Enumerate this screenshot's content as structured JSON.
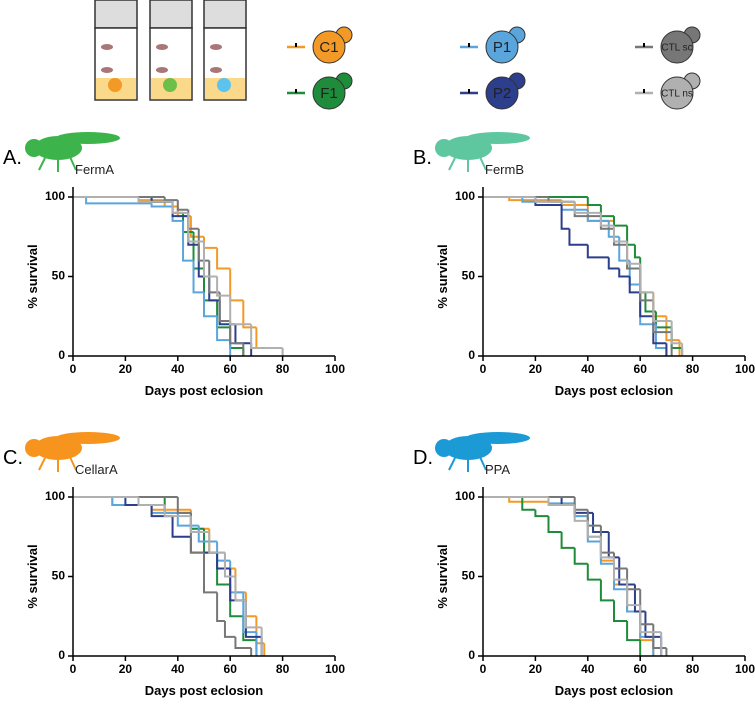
{
  "chart_data": [
    {
      "type": "line",
      "panel": "A.",
      "title": "FermA",
      "icon_color": "#3cb44b",
      "xlabel": "Days post eclosion",
      "ylabel": "% survival",
      "xlim": [
        0,
        100
      ],
      "ylim": [
        0,
        100
      ],
      "xticks": [
        0,
        20,
        40,
        60,
        80,
        100
      ],
      "yticks": [
        0,
        50,
        100
      ],
      "series": [
        {
          "name": "C1",
          "color": "#f39a26",
          "x": [
            0,
            25,
            35,
            40,
            45,
            50,
            55,
            60,
            65,
            70,
            80
          ],
          "values": [
            100,
            98,
            94,
            88,
            75,
            68,
            55,
            35,
            18,
            5,
            0
          ]
        },
        {
          "name": "F1",
          "color": "#1e8c3a",
          "x": [
            0,
            30,
            38,
            42,
            46,
            50,
            55,
            60,
            65
          ],
          "values": [
            100,
            97,
            90,
            78,
            55,
            35,
            18,
            5,
            0
          ]
        },
        {
          "name": "P1",
          "color": "#5aa5dc",
          "x": [
            0,
            5,
            30,
            38,
            42,
            46,
            50,
            55,
            60
          ],
          "values": [
            100,
            96,
            94,
            85,
            60,
            40,
            25,
            10,
            0
          ]
        },
        {
          "name": "P2",
          "color": "#2c3e8c",
          "x": [
            0,
            30,
            38,
            44,
            48,
            52,
            56,
            62,
            68
          ],
          "values": [
            100,
            97,
            88,
            70,
            50,
            35,
            20,
            8,
            0
          ]
        },
        {
          "name": "CTL sc",
          "color": "#777777",
          "x": [
            0,
            35,
            40,
            44,
            48,
            52,
            56,
            60,
            65
          ],
          "values": [
            100,
            98,
            92,
            80,
            60,
            40,
            22,
            8,
            0
          ]
        },
        {
          "name": "CTL ns",
          "color": "#b0b0b0",
          "x": [
            0,
            25,
            38,
            44,
            50,
            55,
            60,
            68,
            80
          ],
          "values": [
            100,
            97,
            90,
            72,
            50,
            38,
            20,
            5,
            0
          ]
        }
      ]
    },
    {
      "type": "line",
      "panel": "B.",
      "title": "FermB",
      "icon_color": "#5ec7a0",
      "xlabel": "Days post eclosion",
      "ylabel": "% survival",
      "xlim": [
        0,
        100
      ],
      "ylim": [
        0,
        100
      ],
      "xticks": [
        0,
        20,
        40,
        60,
        80,
        100
      ],
      "yticks": [
        0,
        50,
        100
      ],
      "series": [
        {
          "color": "#f39a26",
          "x": [
            0,
            10,
            30,
            40,
            50,
            55,
            60,
            65,
            70,
            75
          ],
          "values": [
            100,
            98,
            95,
            85,
            72,
            55,
            40,
            25,
            10,
            0
          ]
        },
        {
          "color": "#1e8c3a",
          "x": [
            0,
            40,
            45,
            50,
            55,
            58,
            60,
            62,
            66,
            72,
            76
          ],
          "values": [
            100,
            95,
            88,
            82,
            70,
            62,
            40,
            28,
            18,
            5,
            0
          ]
        },
        {
          "color": "#5aa5dc",
          "x": [
            0,
            15,
            30,
            40,
            48,
            52,
            56,
            60,
            66,
            70
          ],
          "values": [
            100,
            97,
            92,
            85,
            75,
            60,
            45,
            20,
            5,
            0
          ]
        },
        {
          "color": "#2c3e8c",
          "x": [
            0,
            20,
            30,
            33,
            40,
            48,
            52,
            56,
            60,
            65,
            70
          ],
          "values": [
            100,
            95,
            80,
            70,
            62,
            55,
            50,
            40,
            25,
            8,
            0
          ]
        },
        {
          "color": "#777777",
          "x": [
            0,
            25,
            35,
            45,
            50,
            55,
            60,
            65,
            72
          ],
          "values": [
            100,
            97,
            88,
            80,
            70,
            55,
            35,
            15,
            0
          ]
        },
        {
          "color": "#b0b0b0",
          "x": [
            0,
            20,
            35,
            45,
            50,
            55,
            60,
            65,
            72,
            76
          ],
          "values": [
            100,
            97,
            90,
            82,
            72,
            58,
            40,
            22,
            8,
            0
          ]
        }
      ]
    },
    {
      "type": "line",
      "panel": "C.",
      "title": "CellarA",
      "icon_color": "#f7941d",
      "xlabel": "Days post eclosion",
      "ylabel": "% survival",
      "xlim": [
        0,
        100
      ],
      "ylim": [
        0,
        100
      ],
      "xticks": [
        0,
        20,
        40,
        60,
        80,
        100
      ],
      "yticks": [
        0,
        50,
        100
      ],
      "series": [
        {
          "color": "#f39a26",
          "x": [
            0,
            15,
            30,
            45,
            52,
            58,
            62,
            66,
            70,
            73
          ],
          "values": [
            100,
            95,
            92,
            80,
            65,
            55,
            40,
            25,
            8,
            0
          ]
        },
        {
          "color": "#1e8c3a",
          "x": [
            0,
            28,
            35,
            45,
            50,
            55,
            60,
            65,
            70
          ],
          "values": [
            100,
            100,
            90,
            80,
            65,
            45,
            25,
            10,
            0
          ]
        },
        {
          "color": "#5aa5dc",
          "x": [
            0,
            15,
            30,
            40,
            48,
            55,
            60,
            65,
            70
          ],
          "values": [
            100,
            95,
            90,
            82,
            72,
            60,
            40,
            15,
            0
          ]
        },
        {
          "color": "#2c3e8c",
          "x": [
            0,
            20,
            30,
            38,
            45,
            55,
            60,
            66,
            72
          ],
          "values": [
            100,
            95,
            88,
            75,
            65,
            55,
            35,
            12,
            0
          ]
        },
        {
          "color": "#777777",
          "x": [
            0,
            30,
            40,
            45,
            50,
            55,
            58,
            62,
            68
          ],
          "values": [
            100,
            100,
            90,
            65,
            40,
            22,
            12,
            5,
            0
          ]
        },
        {
          "color": "#b0b0b0",
          "x": [
            0,
            25,
            35,
            45,
            52,
            58,
            62,
            66,
            72
          ],
          "values": [
            100,
            95,
            88,
            78,
            65,
            50,
            35,
            18,
            0
          ]
        }
      ]
    },
    {
      "type": "line",
      "panel": "D.",
      "title": "PPA",
      "icon_color": "#1b9ad6",
      "xlabel": "Days post eclosion",
      "ylabel": "% survival",
      "xlim": [
        0,
        100
      ],
      "ylim": [
        0,
        100
      ],
      "xticks": [
        0,
        20,
        40,
        60,
        80,
        100
      ],
      "yticks": [
        0,
        50,
        100
      ],
      "series": [
        {
          "color": "#f39a26",
          "x": [
            0,
            10,
            25,
            35,
            40,
            45,
            50,
            55,
            60,
            65
          ],
          "values": [
            100,
            97,
            95,
            88,
            75,
            60,
            45,
            28,
            10,
            0
          ]
        },
        {
          "color": "#1e8c3a",
          "x": [
            0,
            15,
            20,
            25,
            30,
            35,
            40,
            45,
            50,
            55,
            60
          ],
          "values": [
            100,
            92,
            88,
            78,
            68,
            58,
            48,
            35,
            22,
            10,
            0
          ]
        },
        {
          "color": "#5aa5dc",
          "x": [
            0,
            25,
            35,
            40,
            45,
            50,
            55,
            60,
            65
          ],
          "values": [
            100,
            96,
            88,
            72,
            58,
            42,
            28,
            12,
            0
          ]
        },
        {
          "color": "#2c3e8c",
          "x": [
            0,
            30,
            35,
            42,
            48,
            52,
            58,
            62,
            68
          ],
          "values": [
            100,
            95,
            90,
            78,
            62,
            45,
            28,
            12,
            0
          ]
        },
        {
          "color": "#777777",
          "x": [
            0,
            30,
            35,
            40,
            45,
            50,
            55,
            60,
            65,
            70
          ],
          "values": [
            100,
            100,
            92,
            82,
            65,
            55,
            42,
            20,
            5,
            0
          ]
        },
        {
          "color": "#b0b0b0",
          "x": [
            0,
            25,
            35,
            40,
            45,
            50,
            55,
            60,
            68
          ],
          "values": [
            100,
            95,
            85,
            75,
            62,
            48,
            32,
            15,
            0
          ]
        }
      ]
    }
  ]
}
